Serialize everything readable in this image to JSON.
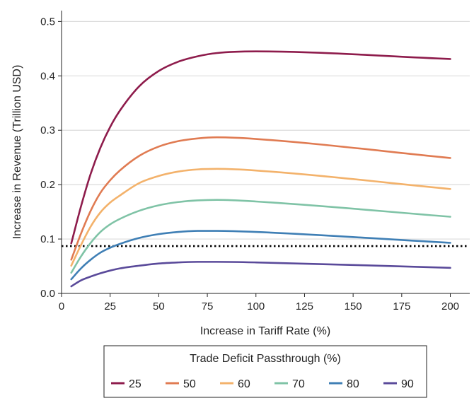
{
  "chart_data": {
    "type": "line",
    "xlabel": "Increase in Tariff Rate (%)",
    "ylabel": "Increase in Revenue (Trillion USD)",
    "xlim": [
      0,
      210
    ],
    "ylim": [
      0,
      0.52
    ],
    "x_ticks": [
      "0",
      "25",
      "50",
      "75",
      "100",
      "125",
      "150",
      "175",
      "200"
    ],
    "x_tick_values": [
      0,
      25,
      50,
      75,
      100,
      125,
      150,
      175,
      200
    ],
    "y_ticks": [
      "0.0",
      "0.1",
      "0.2",
      "0.3",
      "0.4",
      "0.5"
    ],
    "y_tick_values": [
      0,
      0.1,
      0.2,
      0.3,
      0.4,
      0.5
    ],
    "grid": "horizontal",
    "x": [
      5,
      10,
      15,
      20,
      25,
      30,
      40,
      50,
      60,
      70,
      80,
      100,
      200
    ],
    "series": [
      {
        "name": "25",
        "color": "#8e1c4c",
        "values": [
          0.092,
          0.16,
          0.22,
          0.268,
          0.306,
          0.336,
          0.381,
          0.409,
          0.426,
          0.436,
          0.442,
          0.445,
          0.431
        ]
      },
      {
        "name": "50",
        "color": "#e07b52",
        "values": [
          0.062,
          0.11,
          0.152,
          0.185,
          0.208,
          0.226,
          0.253,
          0.27,
          0.28,
          0.285,
          0.287,
          0.284,
          0.249
        ]
      },
      {
        "name": "60",
        "color": "#f3b26b",
        "values": [
          0.051,
          0.089,
          0.123,
          0.149,
          0.167,
          0.18,
          0.203,
          0.216,
          0.224,
          0.228,
          0.229,
          0.226,
          0.192
        ]
      },
      {
        "name": "70",
        "color": "#7fc3a6",
        "values": [
          0.038,
          0.068,
          0.093,
          0.113,
          0.127,
          0.137,
          0.152,
          0.162,
          0.168,
          0.171,
          0.172,
          0.169,
          0.141
        ]
      },
      {
        "name": "80",
        "color": "#3f7fb5",
        "values": [
          0.026,
          0.046,
          0.062,
          0.075,
          0.084,
          0.091,
          0.102,
          0.109,
          0.113,
          0.115,
          0.115,
          0.113,
          0.093
        ]
      },
      {
        "name": "90",
        "color": "#5a4a9a",
        "values": [
          0.013,
          0.024,
          0.031,
          0.037,
          0.042,
          0.046,
          0.051,
          0.055,
          0.057,
          0.058,
          0.058,
          0.057,
          0.047
        ]
      }
    ],
    "reference_line": {
      "y": 0.087,
      "style": "dotted",
      "color": "#000000"
    },
    "legend": {
      "title": "Trade Deficit Passthrough (%)",
      "placement": "bottom",
      "entries": [
        "25",
        "50",
        "60",
        "70",
        "80",
        "90"
      ]
    }
  }
}
